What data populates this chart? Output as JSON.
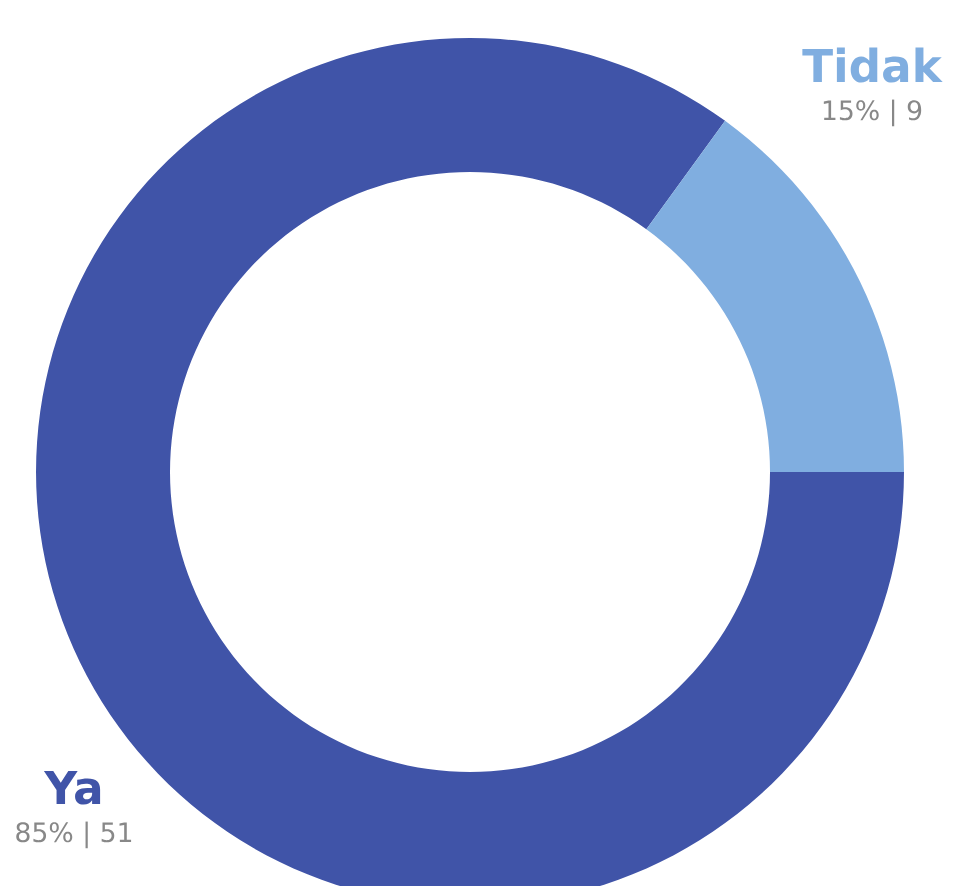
{
  "chart_data": {
    "type": "donut",
    "categories": [
      "Ya",
      "Tidak"
    ],
    "values": [
      51,
      9
    ],
    "colors": [
      "#4054a8",
      "#80aee0"
    ],
    "value_labels": [
      "85% | 51",
      "15% | 9"
    ]
  }
}
